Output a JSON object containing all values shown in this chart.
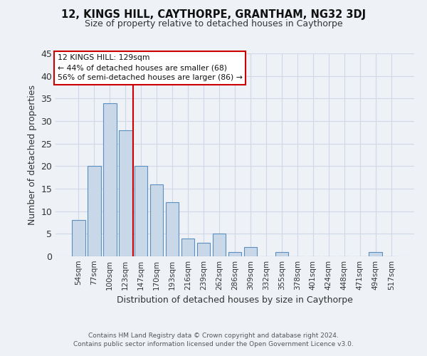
{
  "title1": "12, KINGS HILL, CAYTHORPE, GRANTHAM, NG32 3DJ",
  "title2": "Size of property relative to detached houses in Caythorpe",
  "xlabel": "Distribution of detached houses by size in Caythorpe",
  "ylabel": "Number of detached properties",
  "footer1": "Contains HM Land Registry data © Crown copyright and database right 2024.",
  "footer2": "Contains public sector information licensed under the Open Government Licence v3.0.",
  "bin_labels": [
    "54sqm",
    "77sqm",
    "100sqm",
    "123sqm",
    "147sqm",
    "170sqm",
    "193sqm",
    "216sqm",
    "239sqm",
    "262sqm",
    "286sqm",
    "309sqm",
    "332sqm",
    "355sqm",
    "378sqm",
    "401sqm",
    "424sqm",
    "448sqm",
    "471sqm",
    "494sqm",
    "517sqm"
  ],
  "values": [
    8,
    20,
    34,
    28,
    20,
    16,
    12,
    4,
    3,
    5,
    1,
    2,
    0,
    1,
    0,
    0,
    0,
    0,
    0,
    1,
    0
  ],
  "bar_color": "#c8d8e8",
  "bar_edge_color": "#5a8fc0",
  "vline_color": "#cc0000",
  "annotation_text": "12 KINGS HILL: 129sqm\n← 44% of detached houses are smaller (68)\n56% of semi-detached houses are larger (86) →",
  "annotation_box_color": "#ffffff",
  "annotation_box_edge": "#cc0000",
  "ylim": [
    0,
    45
  ],
  "yticks": [
    0,
    5,
    10,
    15,
    20,
    25,
    30,
    35,
    40,
    45
  ],
  "grid_color": "#d0d8e8",
  "background_color": "#eef2f7"
}
